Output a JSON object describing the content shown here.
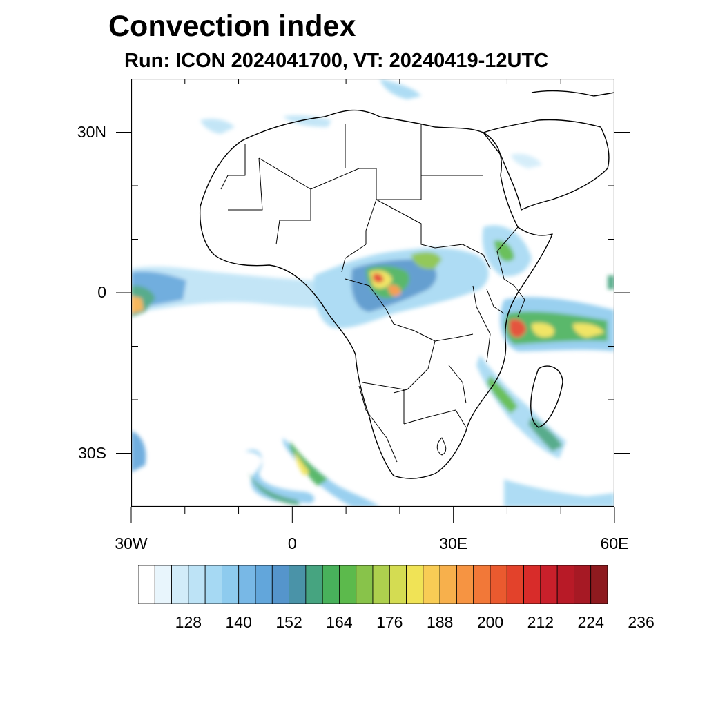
{
  "title": "Convection index",
  "subtitle": "Run: ICON 2024041700,  VT: 20240419-12UTC",
  "axes": {
    "lat_labels": [
      {
        "text": "30N",
        "lat": 30
      },
      {
        "text": "0",
        "lat": 0
      },
      {
        "text": "30S",
        "lat": -30
      }
    ],
    "lon_labels": [
      {
        "text": "30W",
        "lon": -30
      },
      {
        "text": "0",
        "lon": 0
      },
      {
        "text": "30E",
        "lon": 30
      },
      {
        "text": "60E",
        "lon": 60
      }
    ],
    "lon_range": [
      -30,
      60
    ],
    "lat_range": [
      -40,
      40
    ]
  },
  "colorbar": {
    "colors": [
      "#ffffff",
      "#e8f5fc",
      "#d2ecf9",
      "#bde3f6",
      "#a6d9f3",
      "#8ecbee",
      "#78b8e6",
      "#62a6db",
      "#5595cc",
      "#4a93a8",
      "#46a480",
      "#48b15b",
      "#5cba4c",
      "#88c34a",
      "#aed04e",
      "#d4dc52",
      "#f0e356",
      "#f8cc55",
      "#f7b04c",
      "#f69442",
      "#f27838",
      "#ea5a2f",
      "#e3422b",
      "#d82c2a",
      "#c9202b",
      "#b81a27",
      "#a61924",
      "#8e1a1f"
    ],
    "labels": [
      "128",
      "140",
      "152",
      "164",
      "176",
      "188",
      "200",
      "212",
      "224",
      "236"
    ]
  }
}
